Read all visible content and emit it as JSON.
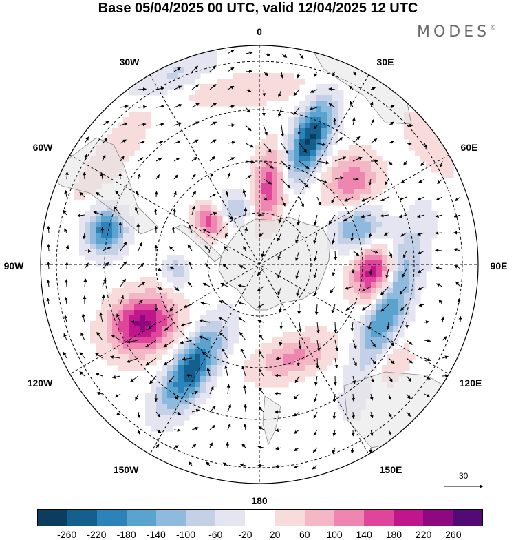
{
  "title": "Base 05/04/2025 00 UTC, valid 12/04/2025 12 UTC",
  "brand": {
    "text": "MODES",
    "mark": "©"
  },
  "projection": "south-polar-stereographic",
  "longitude_labels": {
    "top": "0",
    "top_right": "30E",
    "right_upper": "60E",
    "right": "90E",
    "right_lower": "120E",
    "bottom_right": "150E",
    "bottom": "180",
    "bottom_left": "150W",
    "left_lower": "120W",
    "left": "90W",
    "left_upper": "60W",
    "top_left": "30W"
  },
  "reference_vector": {
    "label": "30"
  },
  "colorbar": {
    "colors": [
      "#0d3d5e",
      "#155f8e",
      "#2b83b9",
      "#5aa3cf",
      "#8fb9dd",
      "#c3d0e6",
      "#e5e5f1",
      "#ffffff",
      "#f8dcdc",
      "#f4b7c6",
      "#ee86b1",
      "#e0459c",
      "#c0168b",
      "#8e087f",
      "#520b74"
    ],
    "tick_labels": [
      "-260",
      "-220",
      "-180",
      "-140",
      "-100",
      "-60",
      "-20",
      "20",
      "60",
      "100",
      "140",
      "180",
      "220",
      "260"
    ]
  },
  "anomalies": [
    {
      "lon": 22,
      "r": 0.62,
      "sx": 0.055,
      "sy": 0.13,
      "val": -270
    },
    {
      "lon": 48,
      "r": 0.57,
      "sx": 0.08,
      "sy": 0.09,
      "val": 130
    },
    {
      "lon": 70,
      "r": 0.48,
      "sx": 0.07,
      "sy": 0.08,
      "val": -150
    },
    {
      "lon": 95,
      "r": 0.53,
      "sx": 0.09,
      "sy": 0.07,
      "val": 220
    },
    {
      "lon": 110,
      "r": 0.62,
      "sx": 0.25,
      "sy": 0.06,
      "val": -200
    },
    {
      "lon": 128,
      "r": 0.72,
      "sx": 0.1,
      "sy": 0.07,
      "val": 80
    },
    {
      "lon": 160,
      "r": 0.45,
      "sx": 0.13,
      "sy": 0.06,
      "val": 110
    },
    {
      "lon": -147,
      "r": 0.57,
      "sx": 0.06,
      "sy": 0.15,
      "val": -250
    },
    {
      "lon": -117,
      "r": 0.6,
      "sx": 0.09,
      "sy": 0.11,
      "val": 230
    },
    {
      "lon": -78,
      "r": 0.72,
      "sx": 0.07,
      "sy": 0.06,
      "val": -210
    },
    {
      "lon": -48,
      "r": 0.3,
      "sx": 0.05,
      "sy": 0.05,
      "val": 170
    },
    {
      "lon": 7,
      "r": 0.36,
      "sx": 0.05,
      "sy": 0.12,
      "val": 170
    },
    {
      "lon": -25,
      "r": 0.28,
      "sx": 0.06,
      "sy": 0.05,
      "val": -110
    },
    {
      "lon": -25,
      "r": 0.95,
      "sx": 0.15,
      "sy": 0.06,
      "val": -70
    },
    {
      "lon": -52,
      "r": 0.84,
      "sx": 0.2,
      "sy": 0.05,
      "val": 60
    },
    {
      "lon": -5,
      "r": 0.8,
      "sx": 0.2,
      "sy": 0.05,
      "val": 60
    },
    {
      "lon": 55,
      "r": 0.95,
      "sx": 0.12,
      "sy": 0.05,
      "val": 60
    },
    {
      "lon": -95,
      "r": 0.38,
      "sx": 0.05,
      "sy": 0.04,
      "val": -90
    }
  ]
}
